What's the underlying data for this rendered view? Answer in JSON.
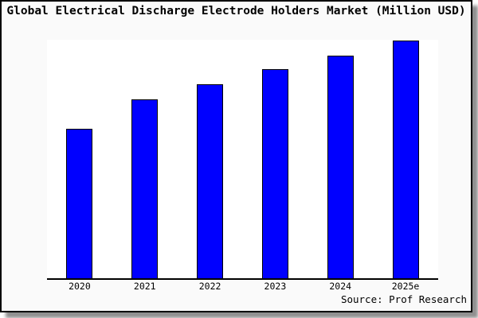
{
  "window": {
    "background_color": "#fafafa",
    "plot_background_color": "#ffffff",
    "border_color": "#000000"
  },
  "chart": {
    "title": "Global Electrical Discharge Electrode Holders Market (Million USD)",
    "source": "Source: Prof Research"
  },
  "chart_data": {
    "type": "bar",
    "title": "Global Electrical Discharge Electrode Holders Market (Million USD)",
    "categories": [
      "2020",
      "2021",
      "2022",
      "2023",
      "2024",
      "2025e"
    ],
    "values": [
      62.9,
      75.3,
      81.6,
      88.0,
      93.6,
      100.0
    ],
    "units": "relative index (no y-axis tick labels shown; values estimated from bar heights, 2025e = 100)",
    "xlabel": "",
    "ylabel": "",
    "ylim": [
      0,
      100.7
    ],
    "grid": false,
    "legend": null,
    "bar_color": "#0000ff",
    "bar_edge_color": "#000000",
    "source": "Source: Prof Research"
  }
}
